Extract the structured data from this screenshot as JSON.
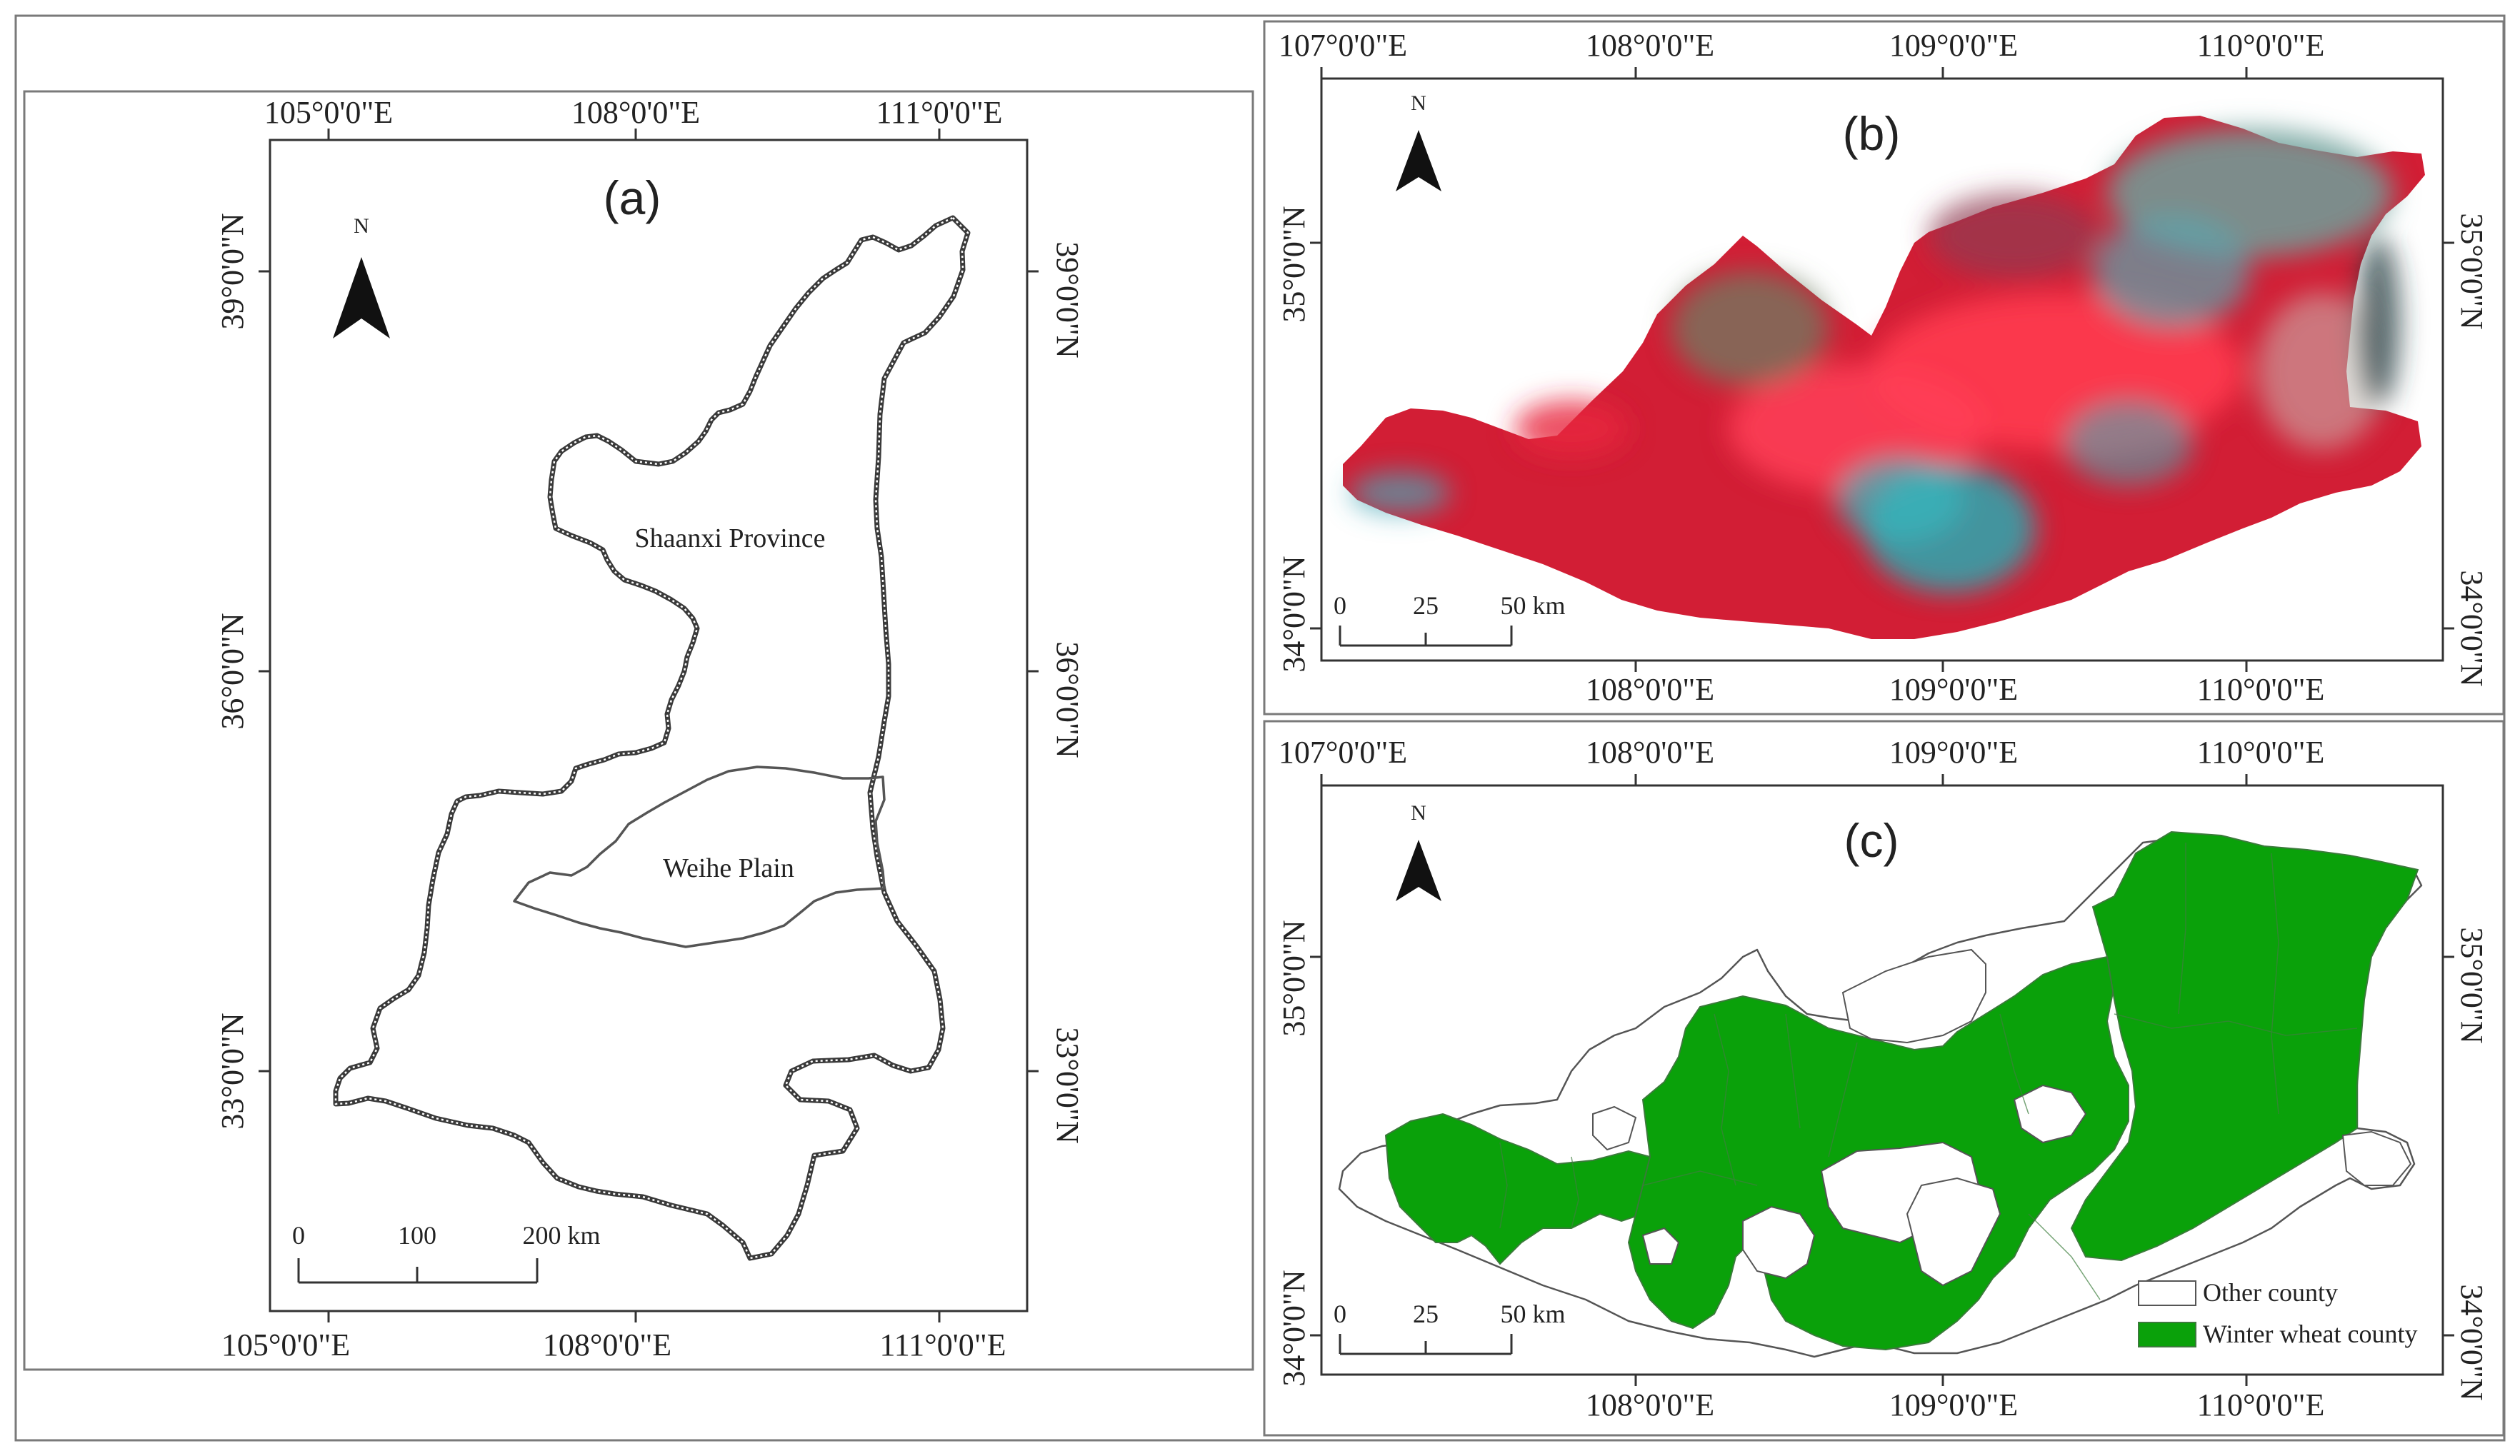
{
  "panels": {
    "a": {
      "title": "(a)",
      "north": "N",
      "x_ticks": [
        "105°0'0\"E",
        "108°0'0\"E",
        "111°0'0\"E"
      ],
      "y_ticks": [
        "39°0'0\"N",
        "36°0'0\"N",
        "33°0'0\"N"
      ],
      "labels": {
        "province": "Shaanxi Province",
        "plain": "Weihe Plain"
      },
      "scale": {
        "ticks": [
          "0",
          "100",
          "200 km"
        ]
      }
    },
    "b": {
      "title": "(b)",
      "north": "N",
      "x_ticks": [
        "107°0'0\"E",
        "108°0'0\"E",
        "109°0'0\"E",
        "110°0'0\"E"
      ],
      "y_ticks": [
        "35°0'0\"N",
        "34°0'0\"N"
      ],
      "scale": {
        "ticks": [
          "0",
          "25",
          "50 km"
        ]
      },
      "colors": {
        "vegetation": "#e0213a",
        "urban": "#2fb2b8",
        "bare": "#8a9a7a"
      }
    },
    "c": {
      "title": "(c)",
      "north": "N",
      "x_ticks": [
        "107°0'0\"E",
        "108°0'0\"E",
        "109°0'0\"E",
        "110°0'0\"E"
      ],
      "y_ticks": [
        "35°0'0\"N",
        "34°0'0\"N"
      ],
      "scale": {
        "ticks": [
          "0",
          "25",
          "50 km"
        ]
      },
      "legend": [
        {
          "label": "Other county",
          "color": "#ffffff"
        },
        {
          "label": "Winter wheat county",
          "color": "#0aa10a"
        }
      ]
    }
  }
}
